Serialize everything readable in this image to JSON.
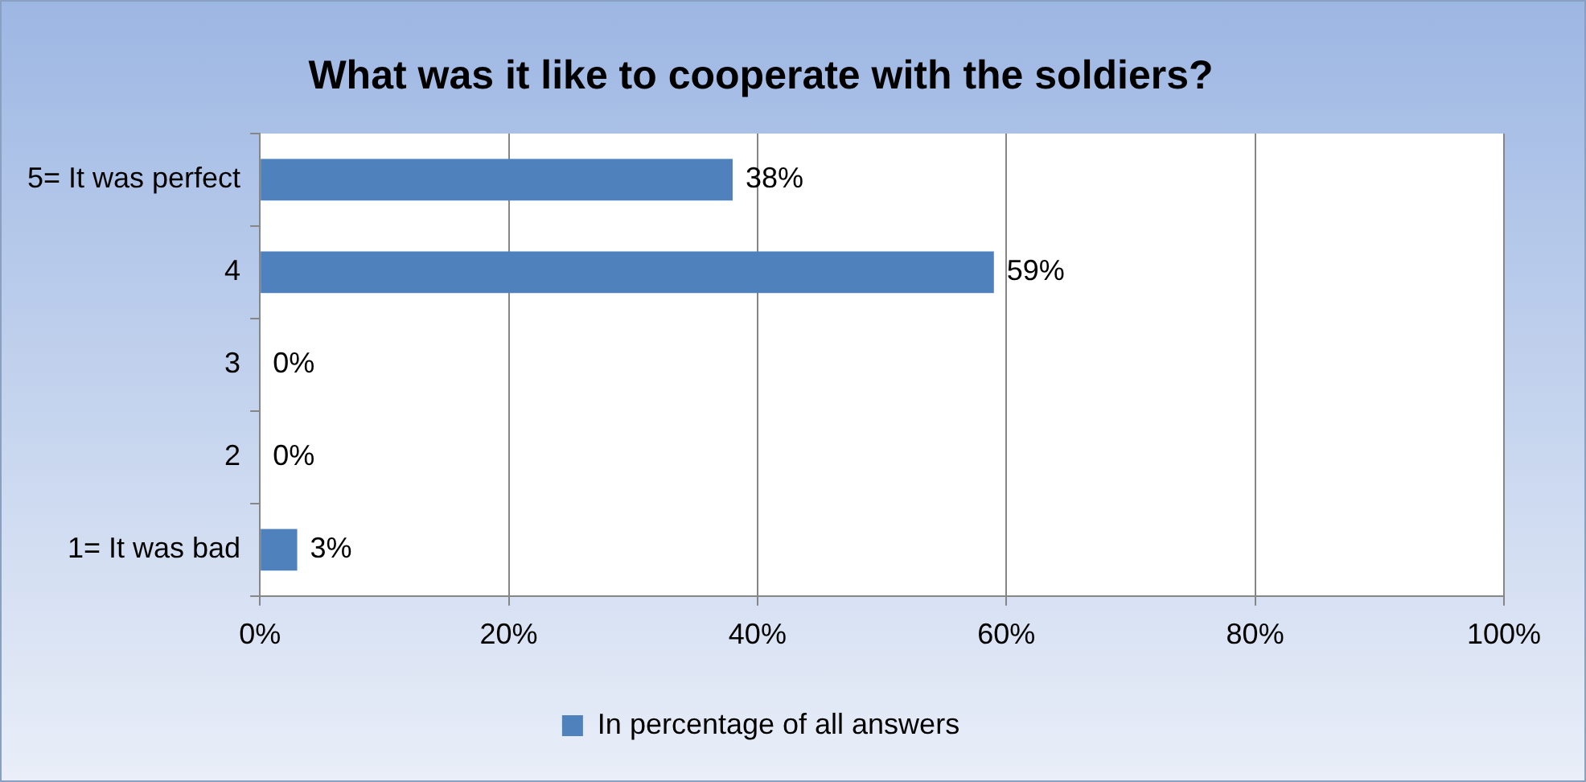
{
  "chart_data": {
    "type": "bar",
    "orientation": "horizontal",
    "title": "What was it like to cooperate with the soldiers?",
    "categories": [
      "5= It was perfect",
      "4",
      "3",
      "2",
      "1= It was bad"
    ],
    "series": [
      {
        "name": "In percentage of all answers",
        "color": "#4f81bd",
        "values": [
          38,
          59,
          0,
          0,
          3
        ]
      }
    ],
    "xlim": [
      0,
      100
    ],
    "xticks": [
      {
        "value": 0,
        "label": "0%"
      },
      {
        "value": 20,
        "label": "20%"
      },
      {
        "value": 40,
        "label": "40%"
      },
      {
        "value": 60,
        "label": "60%"
      },
      {
        "value": 80,
        "label": "80%"
      },
      {
        "value": 100,
        "label": "100%"
      }
    ],
    "value_labels": [
      "38%",
      "59%",
      "0%",
      "0%",
      "3%"
    ],
    "grid": "x",
    "legend": "bottom"
  }
}
